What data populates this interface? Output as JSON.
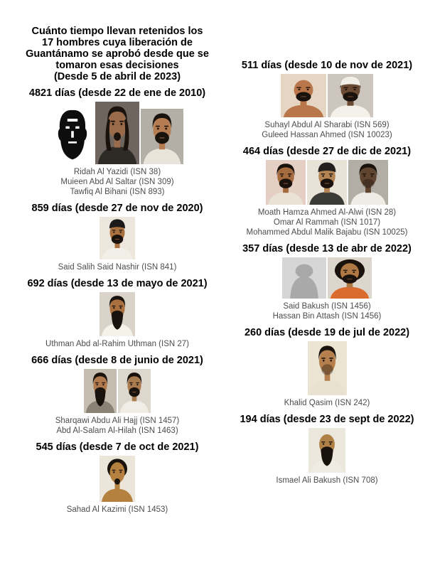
{
  "page": {
    "background": "#ffffff",
    "title_lines": [
      "Cuánto tiempo llevan retenidos los",
      "17 hombres cuya liberación de",
      "Guantánamo se aprobó desde que se",
      "tomaron esas decisiones",
      "(Desde 5 de abril de 2023)"
    ]
  },
  "colors": {
    "heading_text": "#000000",
    "caption_text": "#4d4d4d",
    "silhouette_bg": "#d6d6d6",
    "silhouette_fg": "#a9a9a9"
  },
  "columns": [
    {
      "side": "left",
      "groups": [
        {
          "heading": "4821 días (desde 22 de ene de 2010)",
          "captions": [
            "Ridah Al Yazidi (ISN 38)",
            "Muieen Abd Al Saltar (ISN 309)",
            "Tawfiq Al Bihani (ISN 893)"
          ],
          "photos": [
            {
              "name": "photo-ridah-al-yazidi",
              "style": "bw",
              "bg": "#ffffff",
              "w": 60,
              "h": 80
            },
            {
              "name": "photo-muieen-abd-al-saltar",
              "style": "color",
              "bg": "#6e665e",
              "skin": "#9a6b4a",
              "hair": "long",
              "hair_color": "#1a120c",
              "beard": "goatee",
              "shirt": "#2e2a26",
              "w": 62,
              "h": 88
            },
            {
              "name": "photo-tawfiq-al-bihani",
              "style": "color",
              "bg": "#b3aea6",
              "skin": "#b57c52",
              "hair": "short",
              "hair_color": "#1a120c",
              "beard": "full",
              "shirt": "#e8e4da",
              "w": 60,
              "h": 78
            }
          ]
        },
        {
          "heading": "859 días (desde 27 de nov de 2020)",
          "captions": [
            "Said Salih Said Nashir (ISN 841)"
          ],
          "photos": [
            {
              "name": "photo-said-salih-said-nashir",
              "style": "color",
              "bg": "#ece6dd",
              "skin": "#a9713f",
              "hair": "bald",
              "cap": "#1a1a1a",
              "beard": "full",
              "shirt": "#f2efe8",
              "w": 50,
              "h": 60
            }
          ]
        },
        {
          "heading": "692 días (desde 13 de mayo de 2021)",
          "captions": [
            "Uthman Abd al-Rahim Uthman (ISN 27)"
          ],
          "photos": [
            {
              "name": "photo-uthman-abd-al-rahim-uthman",
              "style": "color",
              "bg": "#d9d3ca",
              "skin": "#a9713f",
              "hair": "short",
              "beard": "long",
              "shirt": "#f5f2ea",
              "w": 50,
              "h": 62
            }
          ]
        },
        {
          "heading": "666 días (desde 8 de junio de 2021)",
          "captions": [
            "Sharqawi Abdu Ali Hajj (ISN 1457)",
            "Abd Al-Salam Al-Hilah (ISN 1463)"
          ],
          "photos": [
            {
              "name": "photo-sharqawi-abdu-ali-hajj",
              "style": "color",
              "bg": "#c6bdb1",
              "skin": "#b07a4e",
              "hair": "short",
              "beard": "long",
              "shirt": "#8a8275",
              "w": 46,
              "h": 62
            },
            {
              "name": "photo-abd-al-salam-al-hilah",
              "style": "color",
              "bg": "#ded7cd",
              "skin": "#a97c50",
              "hair": "short",
              "beard": "full",
              "shirt": "#f0ede6",
              "w": 46,
              "h": 62
            }
          ]
        },
        {
          "heading": "545 días (desde 7 de oct de 2021)",
          "captions": [
            "Sahad Al Kazimi (ISN 1453)"
          ],
          "photos": [
            {
              "name": "photo-sahad-al-kazimi",
              "style": "color",
              "bg": "#ece6da",
              "skin": "#b5813f",
              "hair": "curly",
              "beard": "goatee",
              "shirt": null,
              "w": 50,
              "h": 65
            }
          ]
        }
      ]
    },
    {
      "side": "right",
      "groups": [
        {
          "heading": "511 días (desde 10 de nov de 2021)",
          "captions": [
            "Suhayl Abdul Al Sharabi (ISN 569)",
            "Guleed Hassan Ahmed (ISN 10023)"
          ],
          "photos": [
            {
              "name": "photo-suhayl-abdul-al-sharabi",
              "style": "color",
              "bg": "#e5d5c2",
              "skin": "#b8764a",
              "hair": "bald",
              "beard": "full",
              "shirt": null,
              "w": 64,
              "h": 61
            },
            {
              "name": "photo-guleed-hassan-ahmed",
              "style": "color",
              "bg": "#ccc6bf",
              "skin": "#6b4a33",
              "hair": "short",
              "cap": "#f2efe8",
              "beard": "full",
              "shirt": "#f4f1ea",
              "w": 64,
              "h": 61
            }
          ]
        },
        {
          "heading": "464 días (desde 27 de dic de 2021)",
          "captions": [
            "Moath Hamza Ahmed Al-Alwi (ISN 28)",
            "Omar Al Rammah (ISN 1017)",
            "Mohammed Abdul Malik Bajabu (ISN 10025)"
          ],
          "photos": [
            {
              "name": "photo-moath-hamza-ahmed-al-alwi",
              "style": "color",
              "bg": "#e5cfc4",
              "skin": "#a56b3f",
              "hair": "short",
              "beard": "full",
              "shirt": "#e9e2d5",
              "w": 56,
              "h": 63
            },
            {
              "name": "photo-omar-al-rammah",
              "style": "color",
              "bg": "#e9e2d7",
              "skin": "#b58455",
              "hair": "bald",
              "cap": "#22201e",
              "beard": "full",
              "shirt": "#3a3a38",
              "w": 56,
              "h": 63
            },
            {
              "name": "photo-mohammed-abdul-malik-bajabu",
              "style": "color",
              "bg": "#b2ada5",
              "skin": "#5f4430",
              "hair": "short",
              "beard": "stubble",
              "shirt": "#efece5",
              "w": 56,
              "h": 63
            }
          ]
        },
        {
          "heading": "357 días (desde 13 de abr de 2022)",
          "captions": [
            "Said Bakush (ISN 1456)",
            "Hassan Bin Attash (ISN 1456)"
          ],
          "photos": [
            {
              "name": "photo-said-bakush-silhouette",
              "style": "silhouette",
              "bg": "#d6d6d6",
              "fg": "#a9a9a9",
              "w": 62,
              "h": 58
            },
            {
              "name": "photo-hassan-bin-attash",
              "style": "color",
              "bg": "#dcd6cc",
              "skin": "#b07845",
              "hair": "afro",
              "beard": "full",
              "shirt": "#d96c2e",
              "w": 62,
              "h": 58
            }
          ]
        },
        {
          "heading": "260 días (desde 19 de jul de 2022)",
          "captions": [
            "Khalid Qasim (ISN 242)"
          ],
          "photos": [
            {
              "name": "photo-khalid-qasim",
              "style": "color",
              "bg": "#ece4d2",
              "skin": "#b5804e",
              "hair": "short",
              "beard": "stubble",
              "shirt": "#e8e0d0",
              "w": 55,
              "h": 76
            }
          ]
        },
        {
          "heading": "194 días (desde 23 de sept de 2022)",
          "captions": [
            "Ismael Ali Bakush (ISN 708)"
          ],
          "photos": [
            {
              "name": "photo-ismael-ali-bakush",
              "style": "color",
              "bg": "#ece7dc",
              "skin": "#b08049",
              "hair": "bald",
              "beard": "long",
              "shirt": "#efece4",
              "w": 52,
              "h": 63
            }
          ]
        }
      ]
    }
  ]
}
